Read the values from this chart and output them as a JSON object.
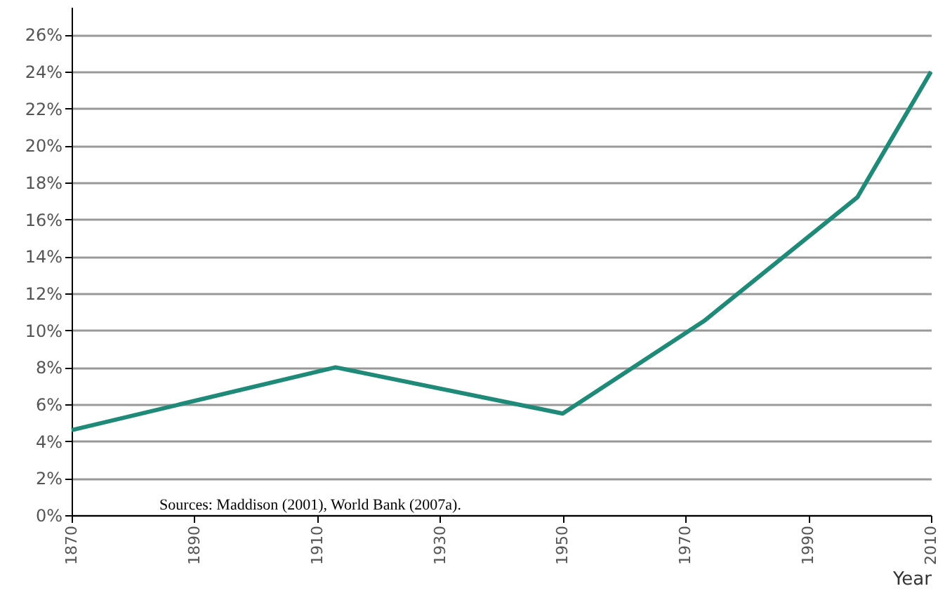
{
  "chart_data": {
    "type": "line",
    "xlabel": "Year",
    "x": [
      1870,
      1913,
      1950,
      1973,
      1998,
      2010
    ],
    "series": [
      {
        "color": "#1f8a78",
        "values": [
          4.6,
          8,
          5.5,
          10.5,
          17.2,
          24
        ]
      }
    ],
    "xlim": [
      1870,
      2010
    ],
    "xticks": [
      1870,
      1890,
      1910,
      1930,
      1950,
      1970,
      1990,
      2010
    ],
    "ylim": [
      0,
      27.5
    ],
    "yticks": [
      {
        "value": 0,
        "label": "0%"
      },
      {
        "value": 2,
        "label": "2%"
      },
      {
        "value": 4,
        "label": "4%"
      },
      {
        "value": 6,
        "label": "6%"
      },
      {
        "value": 8,
        "label": "8%"
      },
      {
        "value": 10,
        "label": "10%"
      },
      {
        "value": 12,
        "label": "12%"
      },
      {
        "value": 14,
        "label": "14%"
      },
      {
        "value": 16,
        "label": "16%"
      },
      {
        "value": 18,
        "label": "18%"
      },
      {
        "value": 20,
        "label": "20%"
      },
      {
        "value": 22,
        "label": "22%"
      },
      {
        "value": 24,
        "label": "24%"
      },
      {
        "value": 26,
        "label": "26%"
      }
    ],
    "grid": "y",
    "marker": "none",
    "line_style": "solid",
    "annotations": [
      "Sources: Maddison (2001), World Bank (2007a)."
    ]
  }
}
